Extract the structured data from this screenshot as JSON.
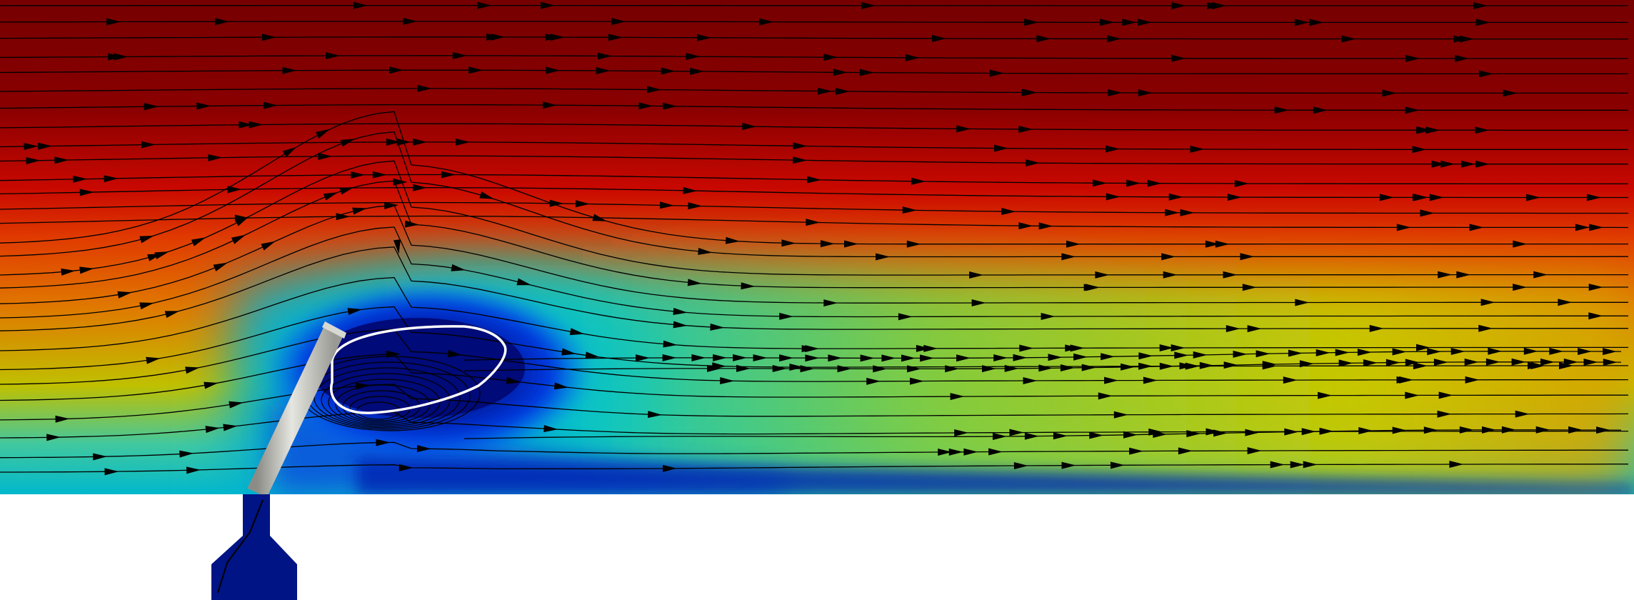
{
  "figure": {
    "colors": {
      "background": "#ffffff",
      "streamline": "#000000",
      "arrow": "#000000",
      "vortex_contour": "#ffffff",
      "rod": "#c8c8c2",
      "nozzle": "#001485",
      "colormap": [
        "#001485",
        "#0050ff",
        "#00c6c8",
        "#8ccc3c",
        "#d4cc00",
        "#e89600",
        "#d81800",
        "#9c0000",
        "#760000"
      ]
    },
    "icons": [
      "streamline-arrow",
      "rod",
      "nozzle"
    ]
  }
}
